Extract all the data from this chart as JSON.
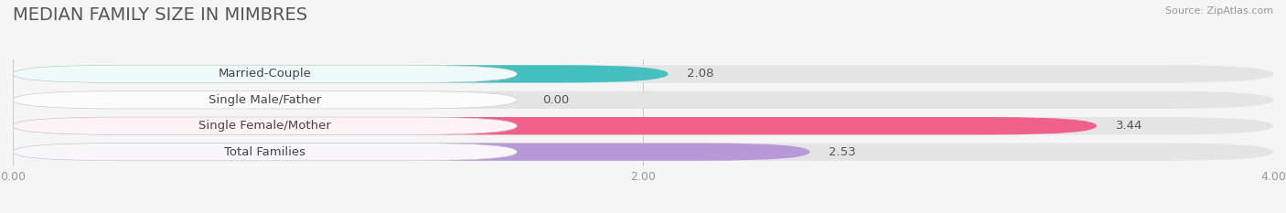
{
  "title": "MEDIAN FAMILY SIZE IN MIMBRES",
  "source": "Source: ZipAtlas.com",
  "categories": [
    "Married-Couple",
    "Single Male/Father",
    "Single Female/Mother",
    "Total Families"
  ],
  "values": [
    2.08,
    0.0,
    3.44,
    2.53
  ],
  "bar_colors": [
    "#45bfbf",
    "#aab8e8",
    "#f0608a",
    "#b898d8"
  ],
  "xlim": [
    0,
    4.0
  ],
  "xticks": [
    0.0,
    2.0,
    4.0
  ],
  "xtick_labels": [
    "0.00",
    "2.00",
    "4.00"
  ],
  "background_color": "#f5f5f5",
  "bar_bg_color": "#e4e4e4",
  "label_fontsize": 9.5,
  "title_fontsize": 14,
  "title_color": "#555555",
  "value_color_dark": "#555555",
  "value_color_light": "#ffffff"
}
